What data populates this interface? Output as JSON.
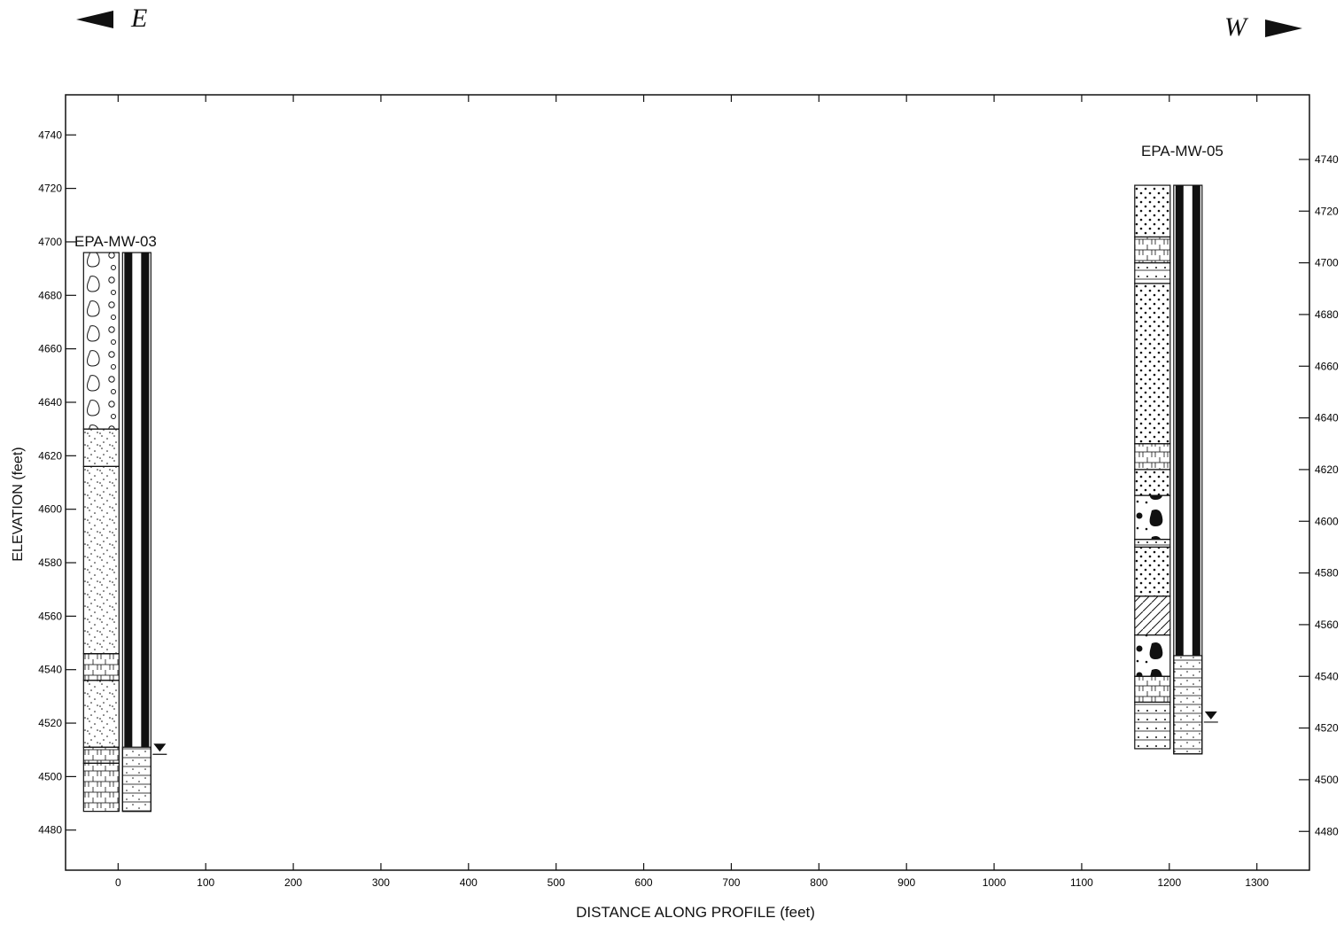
{
  "orientation": {
    "left_direction": "E",
    "right_direction": "W"
  },
  "axes": {
    "xlabel": "DISTANCE ALONG PROFILE (feet)",
    "ylabel": "ELEVATION (feet)",
    "x_ticks": [
      0,
      100,
      200,
      300,
      400,
      500,
      600,
      700,
      800,
      900,
      1000,
      1100,
      1200,
      1300
    ],
    "y_ticks_left": [
      4740,
      4720,
      4700,
      4680,
      4660,
      4640,
      4620,
      4600,
      4580,
      4560,
      4540,
      4520,
      4500,
      4480
    ],
    "y_ticks_right": [
      4740,
      4720,
      4700,
      4680,
      4660,
      4640,
      4620,
      4600,
      4580,
      4560,
      4540,
      4520,
      4500,
      4480
    ],
    "xlim": [
      -60,
      1360
    ],
    "ylim_left": [
      4465,
      4755
    ],
    "ylim_right": [
      4465,
      4765
    ]
  },
  "wells": [
    {
      "name": "EPA-MW-03",
      "distance_ft": 0,
      "top_elev_ft": 4696,
      "bottom_elev_ft": 4487,
      "screen_top_elev_ft": 4511,
      "water_level_elev_ft": 4510,
      "lithology": [
        {
          "top": 4696,
          "bottom": 4630,
          "pattern": "cobbles"
        },
        {
          "top": 4630,
          "bottom": 4616,
          "pattern": "gravelly-sand"
        },
        {
          "top": 4616,
          "bottom": 4546,
          "pattern": "gravelly-sand"
        },
        {
          "top": 4546,
          "bottom": 4536,
          "pattern": "mixed"
        },
        {
          "top": 4536,
          "bottom": 4511,
          "pattern": "gravelly-sand"
        },
        {
          "top": 4511,
          "bottom": 4505,
          "pattern": "mixed"
        },
        {
          "top": 4505,
          "bottom": 4487,
          "pattern": "mixed"
        }
      ]
    },
    {
      "name": "EPA-MW-05",
      "distance_ft": 1200,
      "top_elev_ft": 4730,
      "bottom_elev_ft": 4510,
      "screen_top_elev_ft": 4548,
      "water_level_elev_ft": 4524,
      "lithology": [
        {
          "top": 4730,
          "bottom": 4710,
          "pattern": "sand"
        },
        {
          "top": 4710,
          "bottom": 4700,
          "pattern": "mixed"
        },
        {
          "top": 4700,
          "bottom": 4692,
          "pattern": "silty-sand"
        },
        {
          "top": 4692,
          "bottom": 4630,
          "pattern": "sand"
        },
        {
          "top": 4630,
          "bottom": 4620,
          "pattern": "mixed"
        },
        {
          "top": 4620,
          "bottom": 4610,
          "pattern": "sand"
        },
        {
          "top": 4610,
          "bottom": 4593,
          "pattern": "boulders"
        },
        {
          "top": 4593,
          "bottom": 4590,
          "pattern": "silty-sand"
        },
        {
          "top": 4590,
          "bottom": 4571,
          "pattern": "sand"
        },
        {
          "top": 4571,
          "bottom": 4556,
          "pattern": "clay"
        },
        {
          "top": 4556,
          "bottom": 4540,
          "pattern": "boulders"
        },
        {
          "top": 4540,
          "bottom": 4530,
          "pattern": "mixed"
        },
        {
          "top": 4530,
          "bottom": 4512,
          "pattern": "silty-sand"
        }
      ]
    }
  ]
}
